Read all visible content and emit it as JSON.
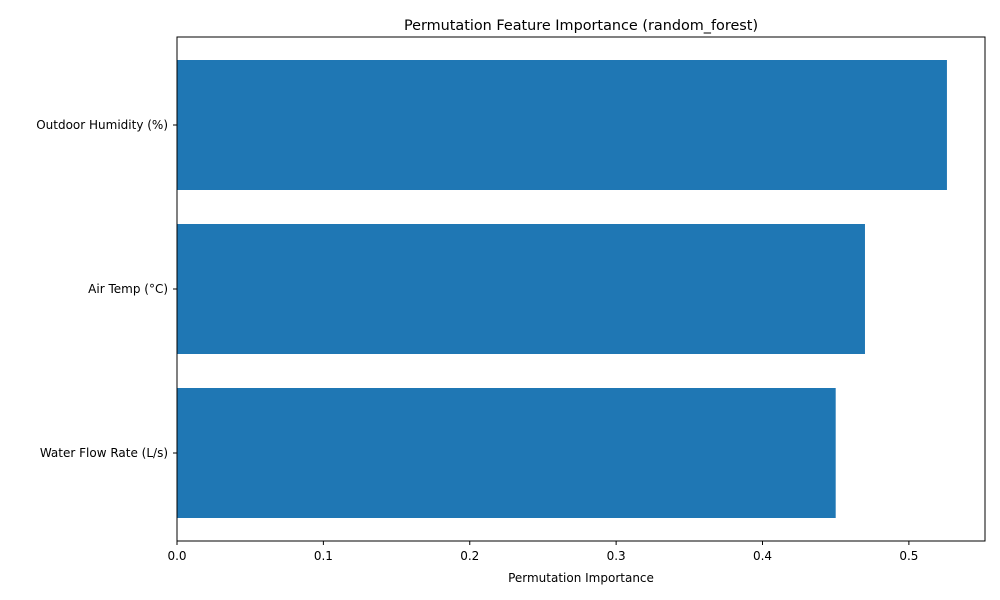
{
  "chart_data": {
    "type": "bar",
    "orientation": "horizontal",
    "title": "Permutation Feature Importance (random_forest)",
    "xlabel": "Permutation Importance",
    "ylabel": "",
    "categories": [
      "Outdoor Humidity (%)",
      "Air Temp (°C)",
      "Water Flow Rate (L/s)"
    ],
    "values": [
      0.526,
      0.47,
      0.45
    ],
    "xlim": [
      0,
      0.552
    ],
    "xticks": [
      0.0,
      0.1,
      0.2,
      0.3,
      0.4,
      0.5
    ],
    "xtick_labels": [
      "0.0",
      "0.1",
      "0.2",
      "0.3",
      "0.4",
      "0.5"
    ],
    "grid": false,
    "legend": "none",
    "bar_color": "#1f77b4"
  }
}
